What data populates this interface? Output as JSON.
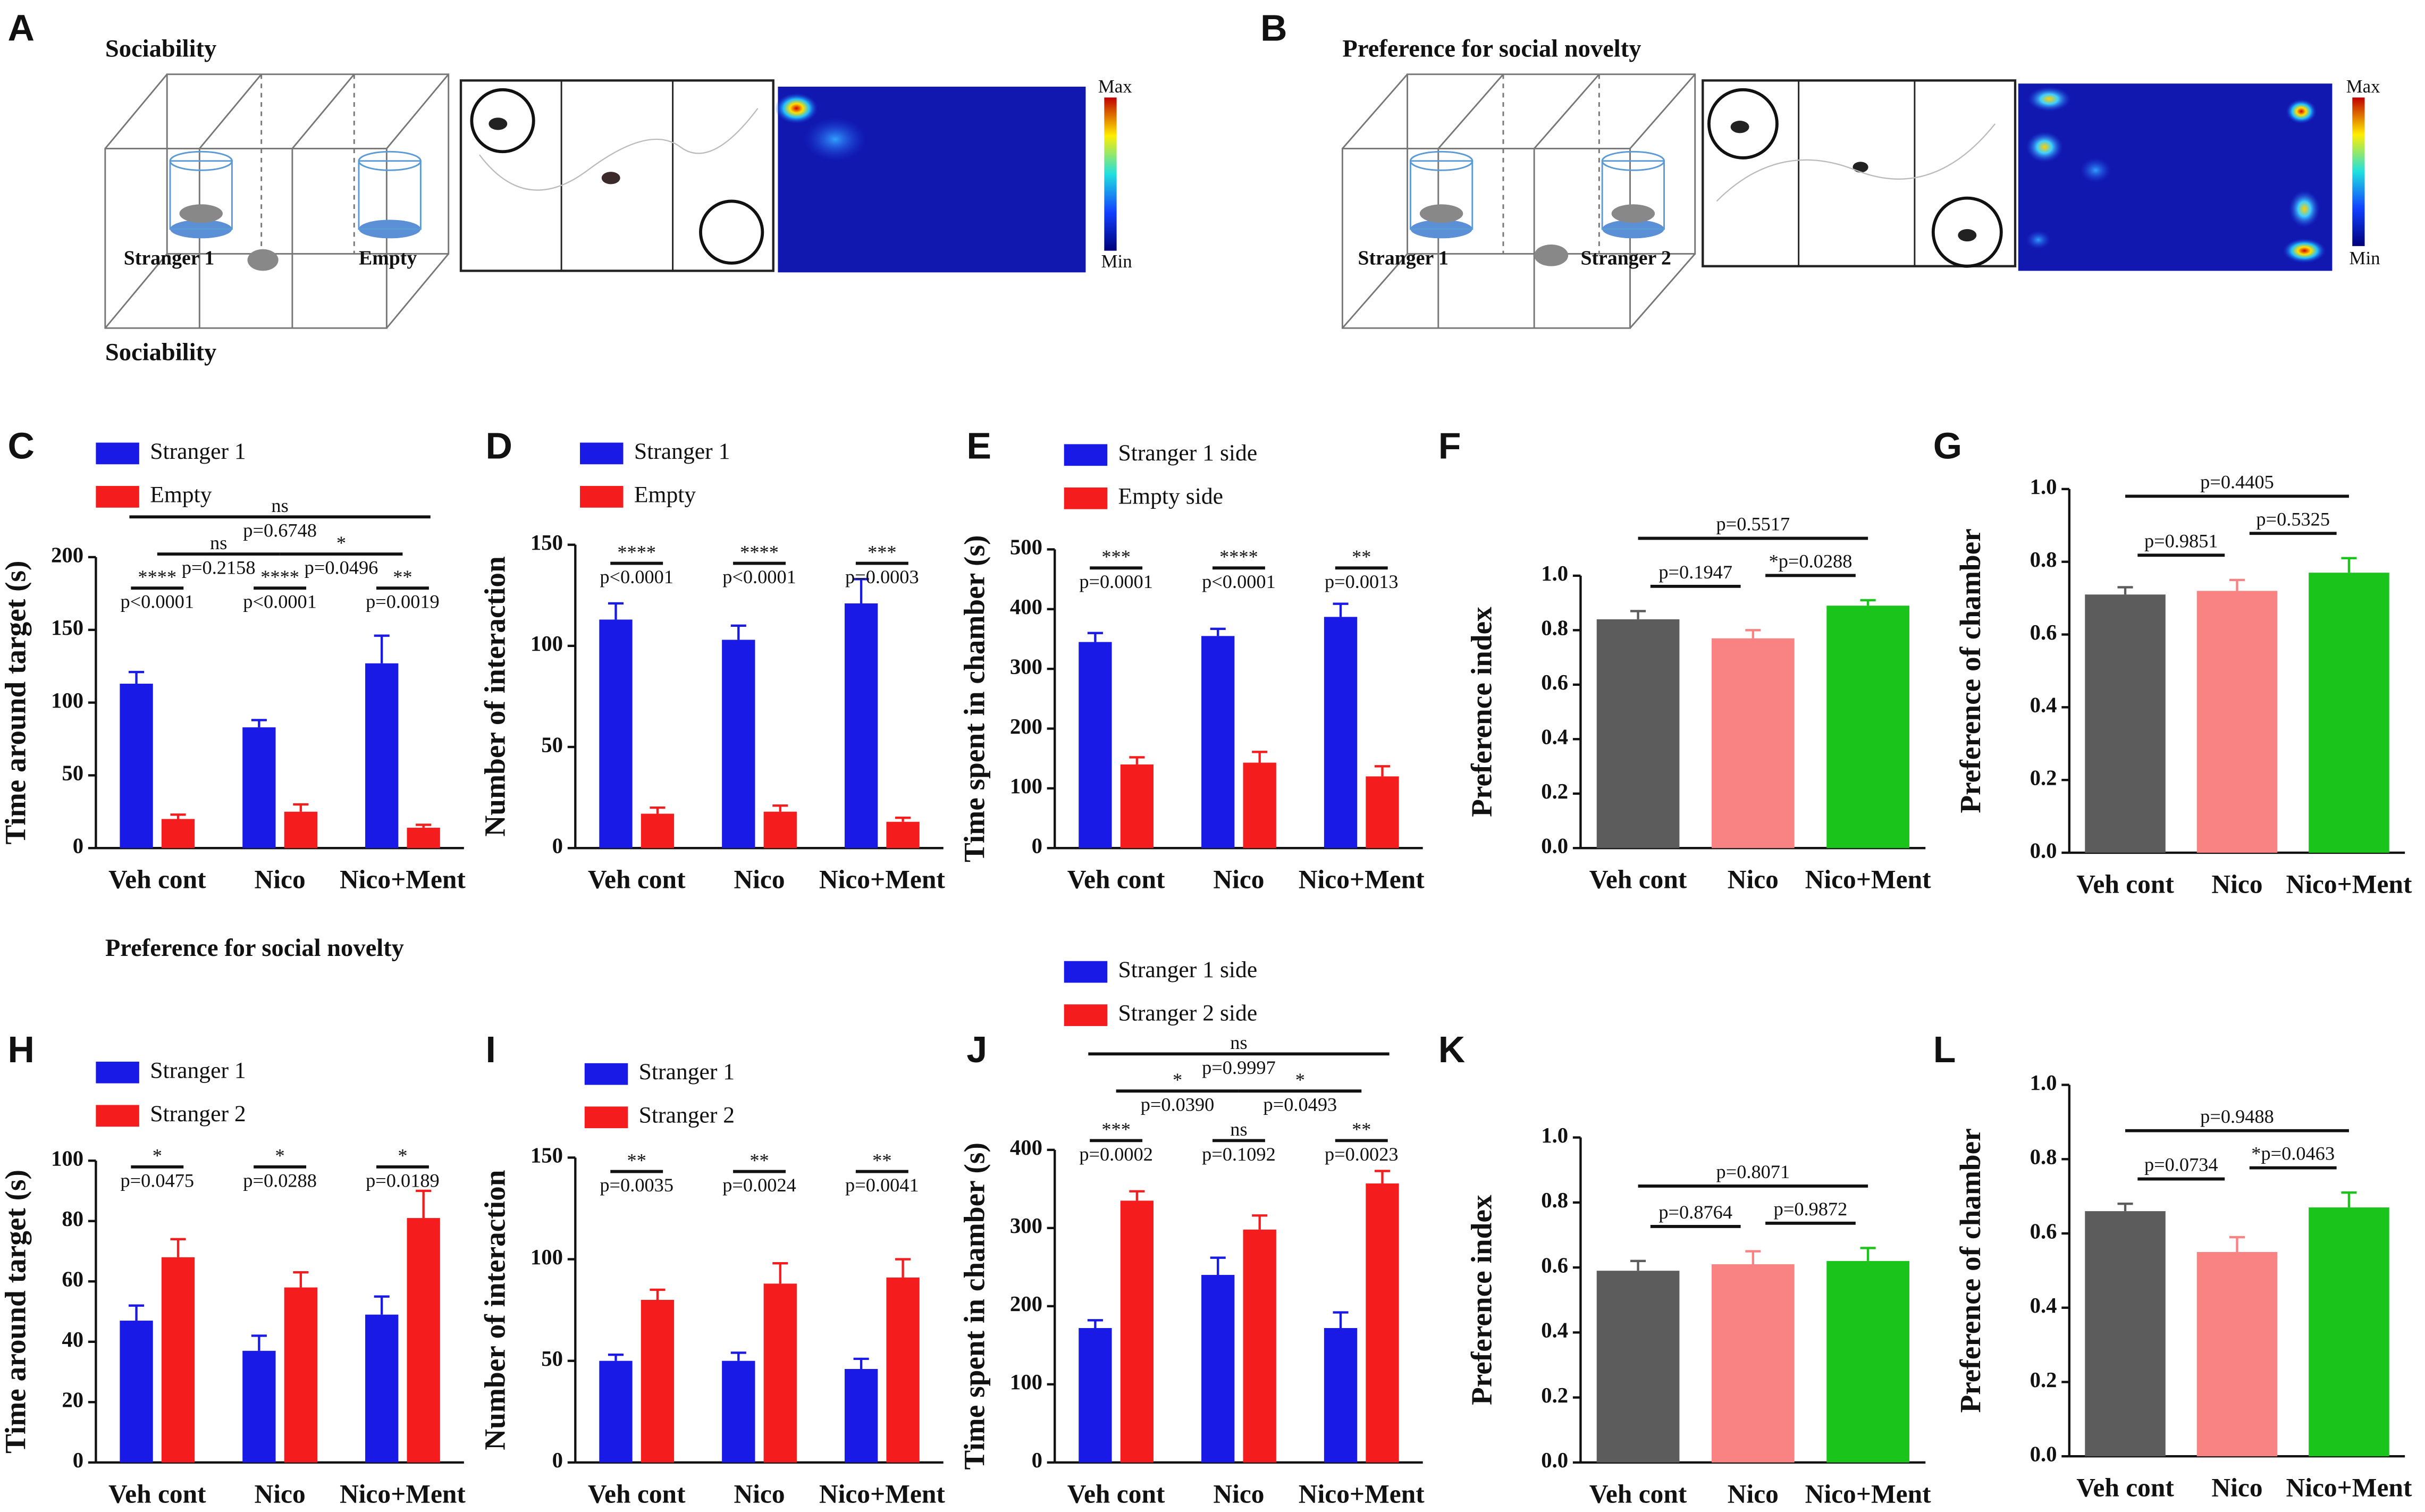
{
  "figure": {
    "A": {
      "letter": "A",
      "title": "Sociability",
      "labels": [
        "Stranger 1",
        "Empty"
      ],
      "max": "Max",
      "min": "Min"
    },
    "B": {
      "letter": "B",
      "title": "Preference for social novelty",
      "labels": [
        "Stranger 1",
        "Stranger 2"
      ],
      "max": "Max",
      "min": "Min"
    },
    "sections": [
      "Sociability",
      "Preference for social novelty"
    ]
  },
  "chart_data": [
    {
      "type": "bar",
      "panel": "C",
      "ylabel": "Time around target (s)",
      "categories": [
        "Veh cont",
        "Nico",
        "Nico+Ment"
      ],
      "series": [
        {
          "name": "Stranger 1",
          "color": "#1a1ae6",
          "values": [
            113,
            83,
            127
          ],
          "errors": [
            8,
            5,
            19
          ]
        },
        {
          "name": "Empty",
          "color": "#f41c1c",
          "values": [
            20,
            25,
            14
          ],
          "errors": [
            3,
            5,
            2
          ]
        }
      ],
      "ylim": [
        0,
        200
      ],
      "yticks": [
        0,
        50,
        100,
        150,
        200
      ],
      "comparisons": [
        {
          "stars": "****",
          "p": "p<0.0001"
        },
        {
          "stars": "****",
          "p": "p<0.0001"
        },
        {
          "stars": "**",
          "p": "p=0.0019"
        },
        {
          "stars": "ns",
          "p": "p=0.2158"
        },
        {
          "stars": "*",
          "p": "p=0.0496"
        },
        {
          "stars": "ns",
          "p": "p=0.6748"
        }
      ]
    },
    {
      "type": "bar",
      "panel": "D",
      "ylabel": "Number of interaction",
      "categories": [
        "Veh cont",
        "Nico",
        "Nico+Ment"
      ],
      "series": [
        {
          "name": "Stranger 1",
          "color": "#1a1ae6",
          "values": [
            113,
            103,
            121
          ],
          "errors": [
            8,
            7,
            12
          ]
        },
        {
          "name": "Empty",
          "color": "#f41c1c",
          "values": [
            17,
            18,
            13
          ],
          "errors": [
            3,
            3,
            2
          ]
        }
      ],
      "ylim": [
        0,
        150
      ],
      "yticks": [
        0,
        50,
        100,
        150
      ],
      "comparisons": [
        {
          "stars": "****",
          "p": "p<0.0001"
        },
        {
          "stars": "****",
          "p": "p<0.0001"
        },
        {
          "stars": "***",
          "p": "p=0.0003"
        }
      ]
    },
    {
      "type": "bar",
      "panel": "E",
      "ylabel": "Time spent in chamber (s)",
      "categories": [
        "Veh cont",
        "Nico",
        "Nico+Ment"
      ],
      "series": [
        {
          "name": "Stranger 1 side",
          "color": "#1a1ae6",
          "values": [
            345,
            355,
            387
          ],
          "errors": [
            15,
            12,
            22
          ]
        },
        {
          "name": "Empty side",
          "color": "#f41c1c",
          "values": [
            140,
            143,
            120
          ],
          "errors": [
            12,
            18,
            17
          ]
        }
      ],
      "ylim": [
        0,
        500
      ],
      "yticks": [
        0,
        100,
        200,
        300,
        400,
        500
      ],
      "comparisons": [
        {
          "stars": "***",
          "p": "p=0.0001"
        },
        {
          "stars": "****",
          "p": "p<0.0001"
        },
        {
          "stars": "**",
          "p": "p=0.0013"
        }
      ]
    },
    {
      "type": "single",
      "panel": "F",
      "ylabel": "Preference index",
      "categories": [
        "Veh cont",
        "Nico",
        "Nico+Ment"
      ],
      "values": [
        0.84,
        0.77,
        0.89
      ],
      "errors": [
        0.03,
        0.03,
        0.02
      ],
      "colors": [
        "#5c5c5c",
        "#f98282",
        "#1ac41a"
      ],
      "ylim": [
        0,
        1
      ],
      "yticks": [
        {
          "value": 0,
          "label": "0.0"
        },
        0.2,
        0.4,
        0.6,
        0.8,
        {
          "value": 1,
          "label": "1.0"
        }
      ],
      "comparisons": [
        {
          "p": "p=0.1947"
        },
        {
          "p": "*p=0.0288"
        },
        {
          "p": "p=0.5517"
        }
      ]
    },
    {
      "type": "single",
      "panel": "G",
      "ylabel": "Preference of chamber",
      "categories": [
        "Veh cont",
        "Nico",
        "Nico+Ment"
      ],
      "values": [
        0.71,
        0.72,
        0.77
      ],
      "errors": [
        0.02,
        0.03,
        0.04
      ],
      "colors": [
        "#5c5c5c",
        "#f98282",
        "#1ac41a"
      ],
      "ylim": [
        0,
        1
      ],
      "yticks": [
        {
          "value": 0,
          "label": "0.0"
        },
        0.2,
        0.4,
        0.6,
        0.8,
        {
          "value": 1,
          "label": "1.0"
        }
      ],
      "comparisons": [
        {
          "p": "p=0.9851"
        },
        {
          "p": "p=0.5325"
        },
        {
          "p": "p=0.4405"
        }
      ]
    },
    {
      "type": "bar",
      "panel": "H",
      "ylabel": "Time around target (s)",
      "categories": [
        "Veh cont",
        "Nico",
        "Nico+Ment"
      ],
      "series": [
        {
          "name": "Stranger 1",
          "color": "#1a1ae6",
          "values": [
            47,
            37,
            49
          ],
          "errors": [
            5,
            5,
            6
          ]
        },
        {
          "name": "Stranger 2",
          "color": "#f41c1c",
          "values": [
            68,
            58,
            81
          ],
          "errors": [
            6,
            5,
            9
          ]
        }
      ],
      "ylim": [
        0,
        100
      ],
      "yticks": [
        0,
        20,
        40,
        60,
        80,
        100
      ],
      "comparisons": [
        {
          "stars": "*",
          "p": "p=0.0475"
        },
        {
          "stars": "*",
          "p": "p=0.0288"
        },
        {
          "stars": "*",
          "p": "p=0.0189"
        }
      ]
    },
    {
      "type": "bar",
      "panel": "I",
      "ylabel": "Number of interaction",
      "categories": [
        "Veh cont",
        "Nico",
        "Nico+Ment"
      ],
      "series": [
        {
          "name": "Stranger 1",
          "color": "#1a1ae6",
          "values": [
            50,
            50,
            46
          ],
          "errors": [
            3,
            4,
            5
          ]
        },
        {
          "name": "Stranger 2",
          "color": "#f41c1c",
          "values": [
            80,
            88,
            91
          ],
          "errors": [
            5,
            10,
            9
          ]
        }
      ],
      "ylim": [
        0,
        150
      ],
      "yticks": [
        0,
        50,
        100,
        150
      ],
      "comparisons": [
        {
          "stars": "**",
          "p": "p=0.0035"
        },
        {
          "stars": "**",
          "p": "p=0.0024"
        },
        {
          "stars": "**",
          "p": "p=0.0041"
        }
      ]
    },
    {
      "type": "bar",
      "panel": "J",
      "ylabel": "Time spent in chamber (s)",
      "categories": [
        "Veh cont",
        "Nico",
        "Nico+Ment"
      ],
      "series": [
        {
          "name": "Stranger 1 side",
          "color": "#1a1ae6",
          "values": [
            172,
            240,
            172
          ],
          "errors": [
            10,
            22,
            20
          ]
        },
        {
          "name": "Stranger 2 side",
          "color": "#f41c1c",
          "values": [
            335,
            298,
            357
          ],
          "errors": [
            12,
            18,
            16
          ]
        }
      ],
      "ylim": [
        0,
        400
      ],
      "yticks": [
        0,
        100,
        200,
        300,
        400
      ],
      "comparisons": [
        {
          "stars": "***",
          "p": "p=0.0002"
        },
        {
          "stars": "ns",
          "p": "p=0.1092"
        },
        {
          "stars": "**",
          "p": "p=0.0023"
        },
        {
          "stars": "*",
          "p": "p=0.0390"
        },
        {
          "stars": "*",
          "p": "p=0.0493"
        },
        {
          "stars": "ns",
          "p": "p=0.9997"
        }
      ]
    },
    {
      "type": "single",
      "panel": "K",
      "ylabel": "Preference index",
      "categories": [
        "Veh cont",
        "Nico",
        "Nico+Ment"
      ],
      "values": [
        0.59,
        0.61,
        0.62
      ],
      "errors": [
        0.03,
        0.04,
        0.04
      ],
      "colors": [
        "#5c5c5c",
        "#f98282",
        "#1ac41a"
      ],
      "ylim": [
        0,
        1
      ],
      "yticks": [
        {
          "value": 0,
          "label": "0.0"
        },
        0.2,
        0.4,
        0.6,
        0.8,
        {
          "value": 1,
          "label": "1.0"
        }
      ],
      "comparisons": [
        {
          "p": "p=0.8764"
        },
        {
          "p": "p=0.9872"
        },
        {
          "p": "p=0.8071"
        }
      ]
    },
    {
      "type": "single",
      "panel": "L",
      "ylabel": "Preference of chamber",
      "categories": [
        "Veh cont",
        "Nico",
        "Nico+Ment"
      ],
      "values": [
        0.66,
        0.55,
        0.67
      ],
      "errors": [
        0.02,
        0.04,
        0.04
      ],
      "colors": [
        "#5c5c5c",
        "#f98282",
        "#1ac41a"
      ],
      "ylim": [
        0,
        1
      ],
      "yticks": [
        {
          "value": 0,
          "label": "0.0"
        },
        0.2,
        0.4,
        0.6,
        0.8,
        {
          "value": 1,
          "label": "1.0"
        }
      ],
      "comparisons": [
        {
          "p": "p=0.0734"
        },
        {
          "p": "*p=0.0463"
        },
        {
          "p": "p=0.9488"
        }
      ]
    }
  ]
}
